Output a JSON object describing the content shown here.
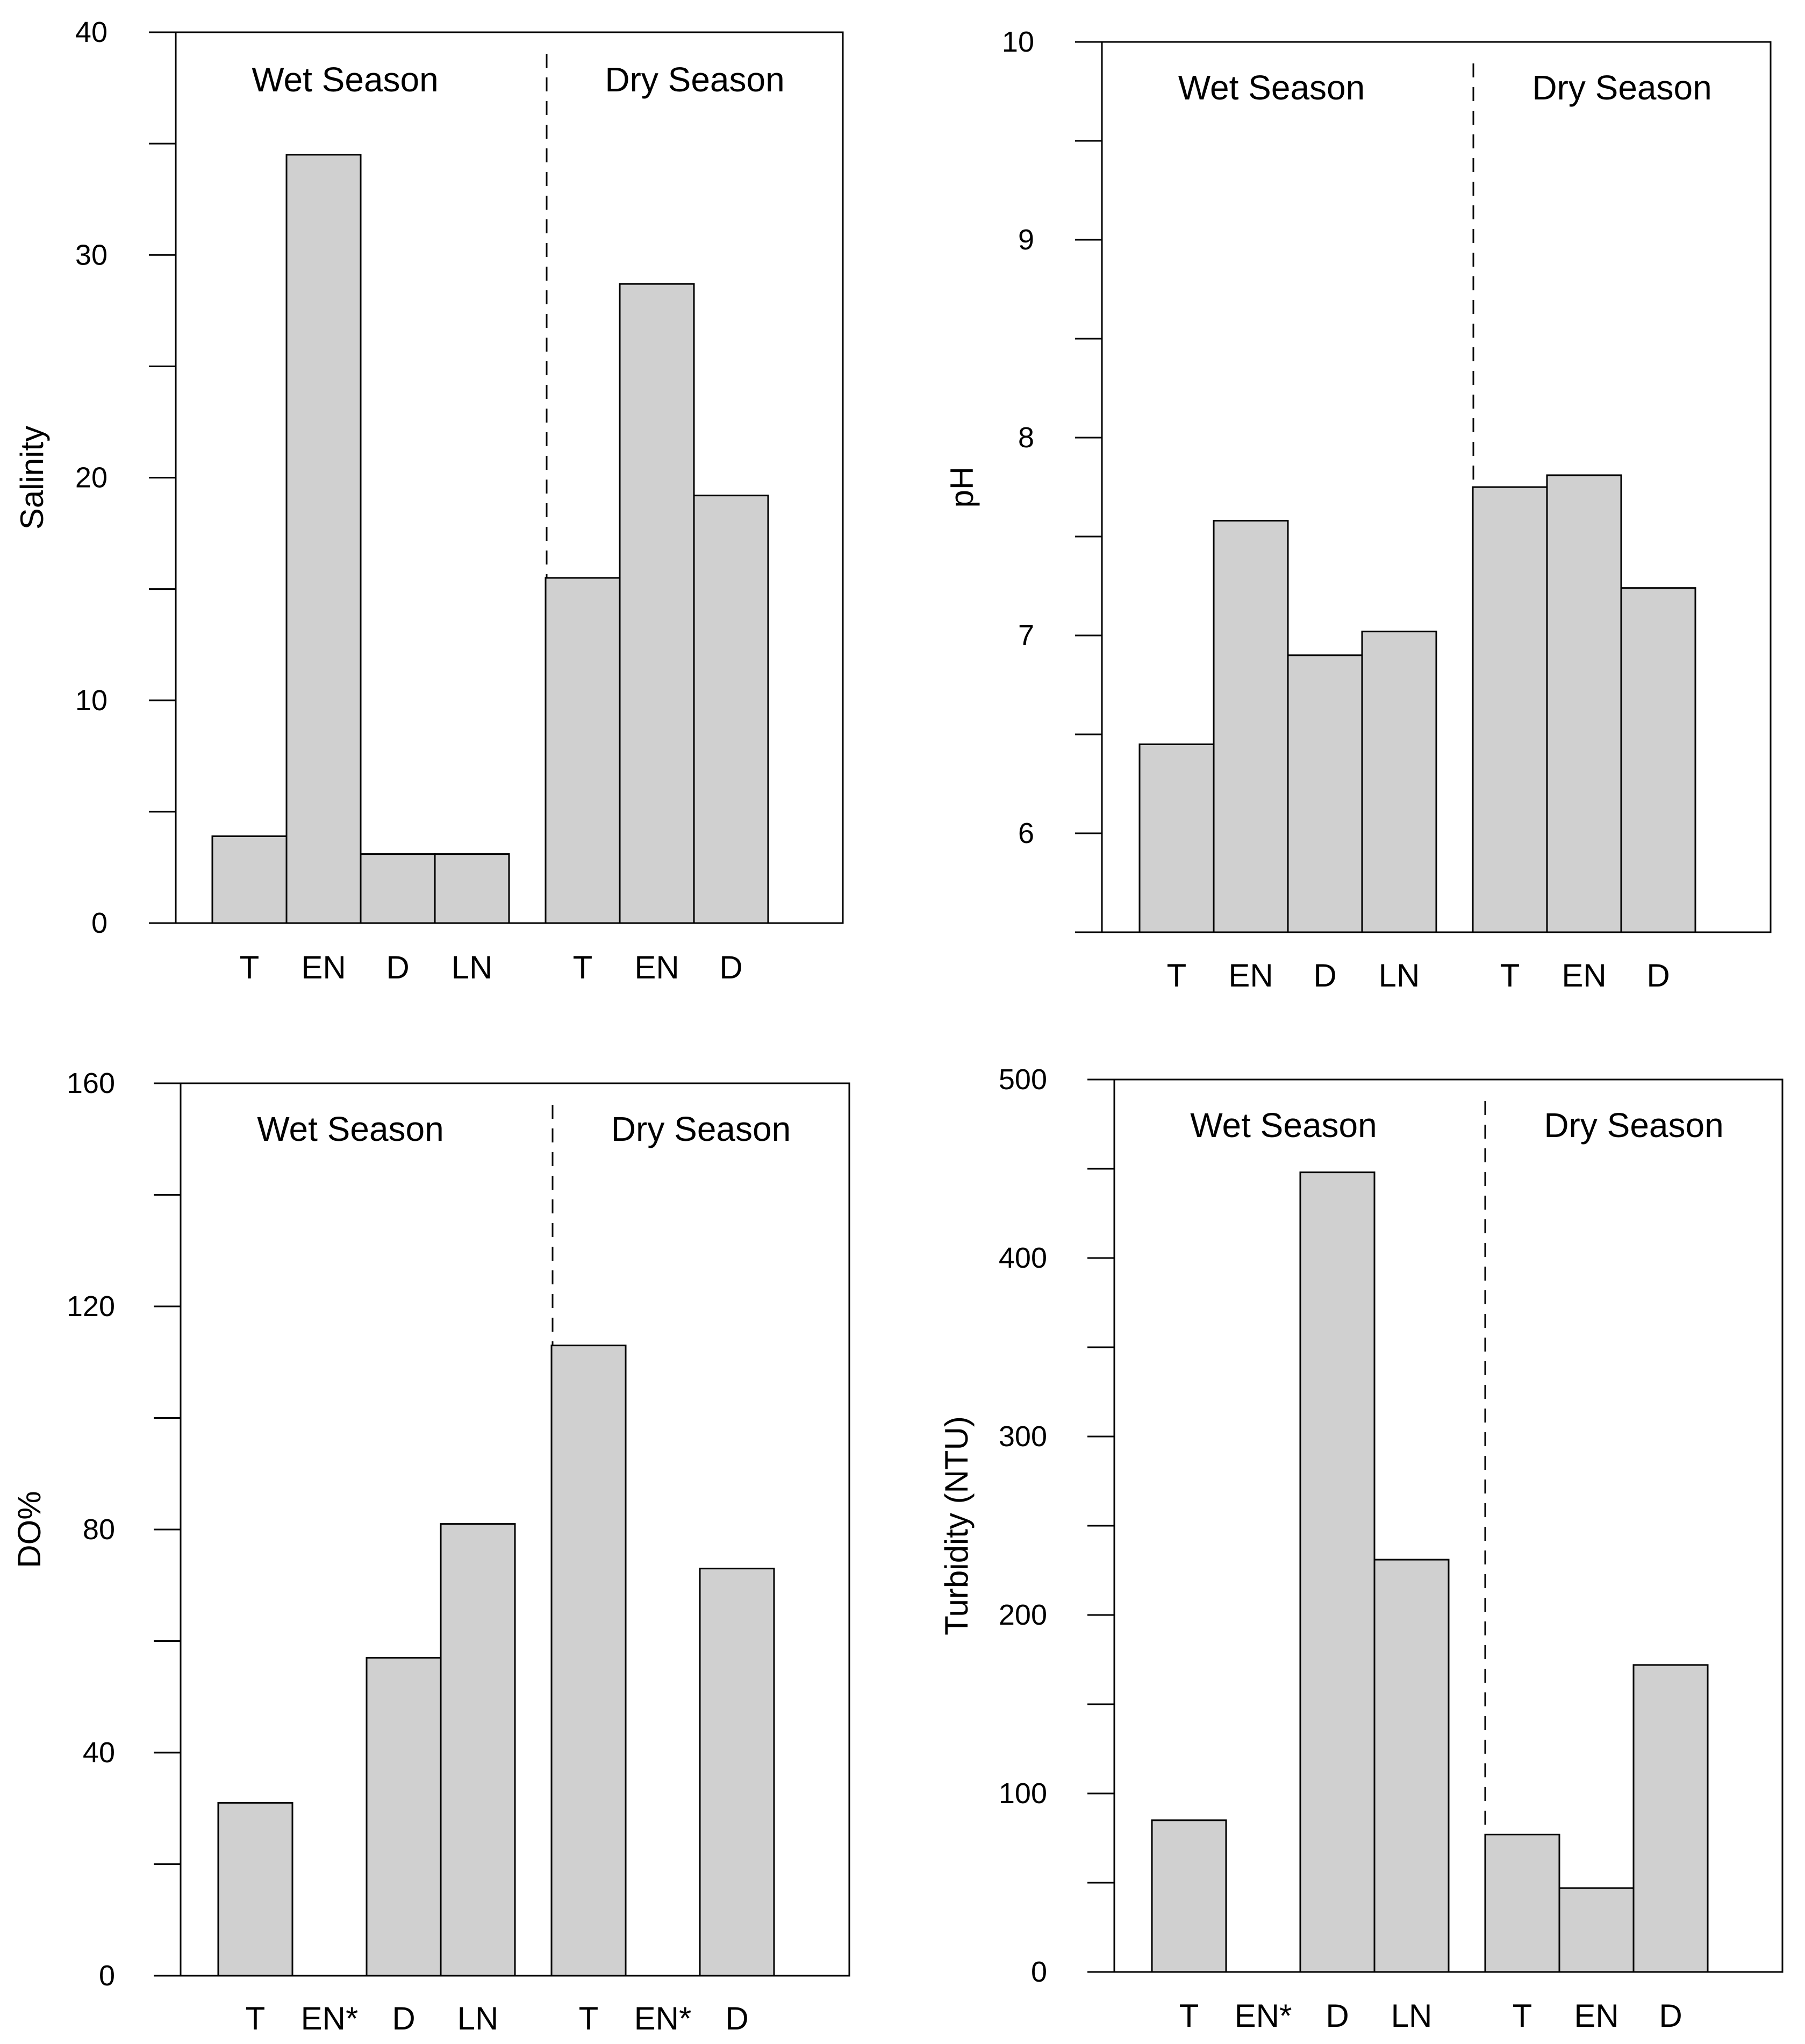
{
  "colors": {
    "bar_fill": "#d0d0d0",
    "bar_stroke": "#000000",
    "axis": "#000000",
    "background": "#ffffff"
  },
  "chart_data": [
    {
      "type": "bar",
      "ylabel": "Salinity",
      "ylim": [
        0,
        40
      ],
      "yticks": [
        0,
        10,
        20,
        30,
        40
      ],
      "groups": [
        {
          "name": "Wet Season",
          "categories": [
            "T",
            "EN",
            "D",
            "LN"
          ],
          "values": [
            3.9,
            34.5,
            3.1,
            3.1
          ]
        },
        {
          "name": "Dry Season",
          "categories": [
            "T",
            "EN",
            "D"
          ],
          "values": [
            15.5,
            28.7,
            19.2
          ]
        }
      ]
    },
    {
      "type": "bar",
      "ylabel": "pH",
      "ylim": [
        5.5,
        10
      ],
      "yticks": [
        6,
        7,
        8,
        9,
        10
      ],
      "groups": [
        {
          "name": "Wet Season",
          "categories": [
            "T",
            "EN",
            "D",
            "LN"
          ],
          "values": [
            6.45,
            7.58,
            6.9,
            7.02
          ]
        },
        {
          "name": "Dry Season",
          "categories": [
            "T",
            "EN",
            "D"
          ],
          "values": [
            7.75,
            7.81,
            7.24
          ]
        }
      ]
    },
    {
      "type": "bar",
      "ylabel": "DO%",
      "ylim": [
        0,
        160
      ],
      "yticks": [
        0,
        40,
        80,
        120,
        160
      ],
      "groups": [
        {
          "name": "Wet Season",
          "categories": [
            "T",
            "EN*",
            "D",
            "LN"
          ],
          "values": [
            31,
            0,
            57,
            81
          ]
        },
        {
          "name": "Dry Season",
          "categories": [
            "T",
            "EN*",
            "D"
          ],
          "values": [
            113,
            0,
            73
          ]
        }
      ]
    },
    {
      "type": "bar",
      "ylabel": "Turbidity (NTU)",
      "ylim": [
        0,
        500
      ],
      "yticks": [
        0,
        100,
        200,
        300,
        400,
        500
      ],
      "groups": [
        {
          "name": "Wet Season",
          "categories": [
            "T",
            "EN*",
            "D",
            "LN"
          ],
          "values": [
            85,
            0,
            448,
            231
          ]
        },
        {
          "name": "Dry Season",
          "categories": [
            "T",
            "EN",
            "D"
          ],
          "values": [
            77,
            47,
            172
          ]
        }
      ]
    }
  ]
}
